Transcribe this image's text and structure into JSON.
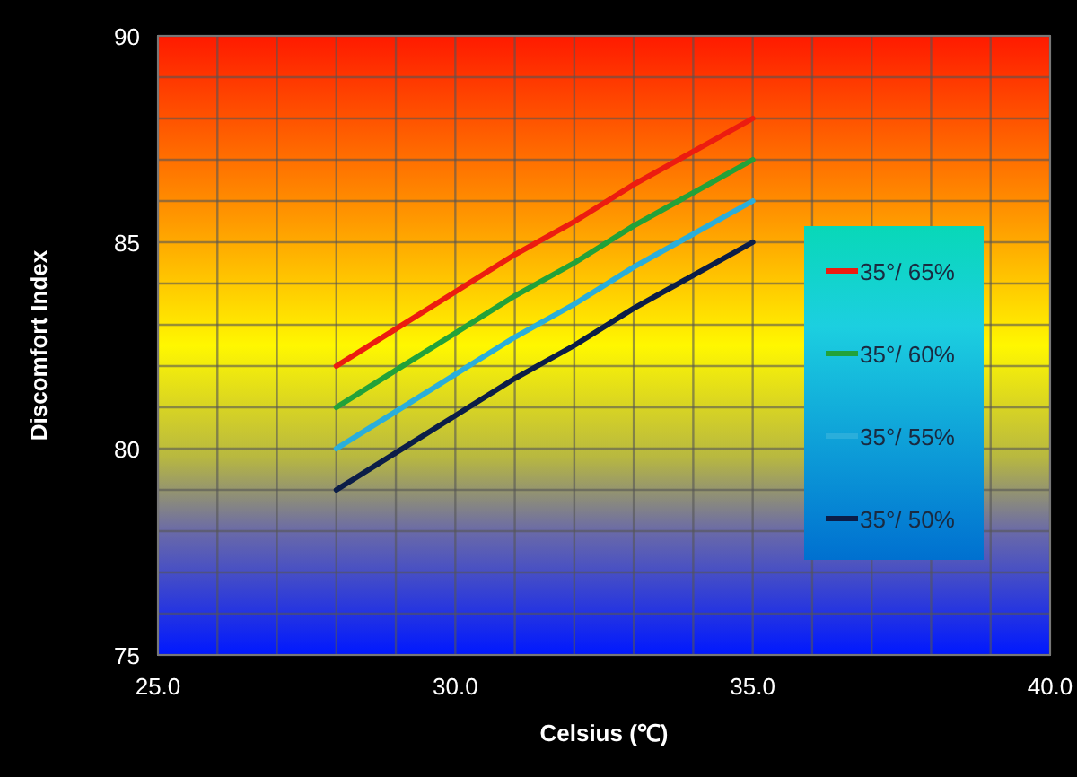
{
  "chart_data": {
    "type": "line",
    "xlabel": "Celsius (℃)",
    "ylabel": "Discomfort Index",
    "x": [
      28,
      29,
      30,
      31,
      32,
      33,
      34,
      35
    ],
    "series": [
      {
        "name": "35°/ 65%",
        "color": "#ec1c10",
        "values": [
          82,
          82.9,
          83.8,
          84.7,
          85.5,
          86.4,
          87.2,
          88
        ]
      },
      {
        "name": "35°/ 60%",
        "color": "#22a23a",
        "values": [
          81,
          81.9,
          82.8,
          83.7,
          84.5,
          85.4,
          86.2,
          87
        ]
      },
      {
        "name": "35°/ 55%",
        "color": "#2aaedb",
        "values": [
          80,
          80.9,
          81.8,
          82.7,
          83.5,
          84.4,
          85.2,
          86
        ]
      },
      {
        "name": "35°/ 50%",
        "color": "#0b1d48",
        "values": [
          79,
          79.9,
          80.8,
          81.7,
          82.5,
          83.4,
          84.2,
          85
        ]
      }
    ],
    "xlim": [
      25,
      40
    ],
    "xticks": [
      {
        "value": 25,
        "label": "25.0"
      },
      {
        "value": 26,
        "label": null
      },
      {
        "value": 27,
        "label": null
      },
      {
        "value": 28,
        "label": null
      },
      {
        "value": 29,
        "label": null
      },
      {
        "value": 30,
        "label": "30.0"
      },
      {
        "value": 31,
        "label": null
      },
      {
        "value": 32,
        "label": null
      },
      {
        "value": 33,
        "label": null
      },
      {
        "value": 34,
        "label": null
      },
      {
        "value": 35,
        "label": "35.0"
      },
      {
        "value": 36,
        "label": null
      },
      {
        "value": 37,
        "label": null
      },
      {
        "value": 38,
        "label": null
      },
      {
        "value": 39,
        "label": null
      },
      {
        "value": 40,
        "label": "40.0"
      }
    ],
    "ylim": [
      75,
      90
    ],
    "yticks": [
      75,
      {
        "value": 76,
        "label": null
      },
      {
        "value": 77,
        "label": null
      },
      {
        "value": 78,
        "label": null
      },
      {
        "value": 79,
        "label": null
      },
      80,
      {
        "value": 81,
        "label": null
      },
      {
        "value": 82,
        "label": null
      },
      {
        "value": 83,
        "label": null
      },
      {
        "value": 84,
        "label": null
      },
      85,
      {
        "value": 86,
        "label": null
      },
      {
        "value": 87,
        "label": null
      },
      {
        "value": 88,
        "label": null
      },
      {
        "value": 89,
        "label": null
      },
      90
    ],
    "grid": true,
    "legend": "right",
    "marker": "none",
    "line_style": "solid"
  }
}
